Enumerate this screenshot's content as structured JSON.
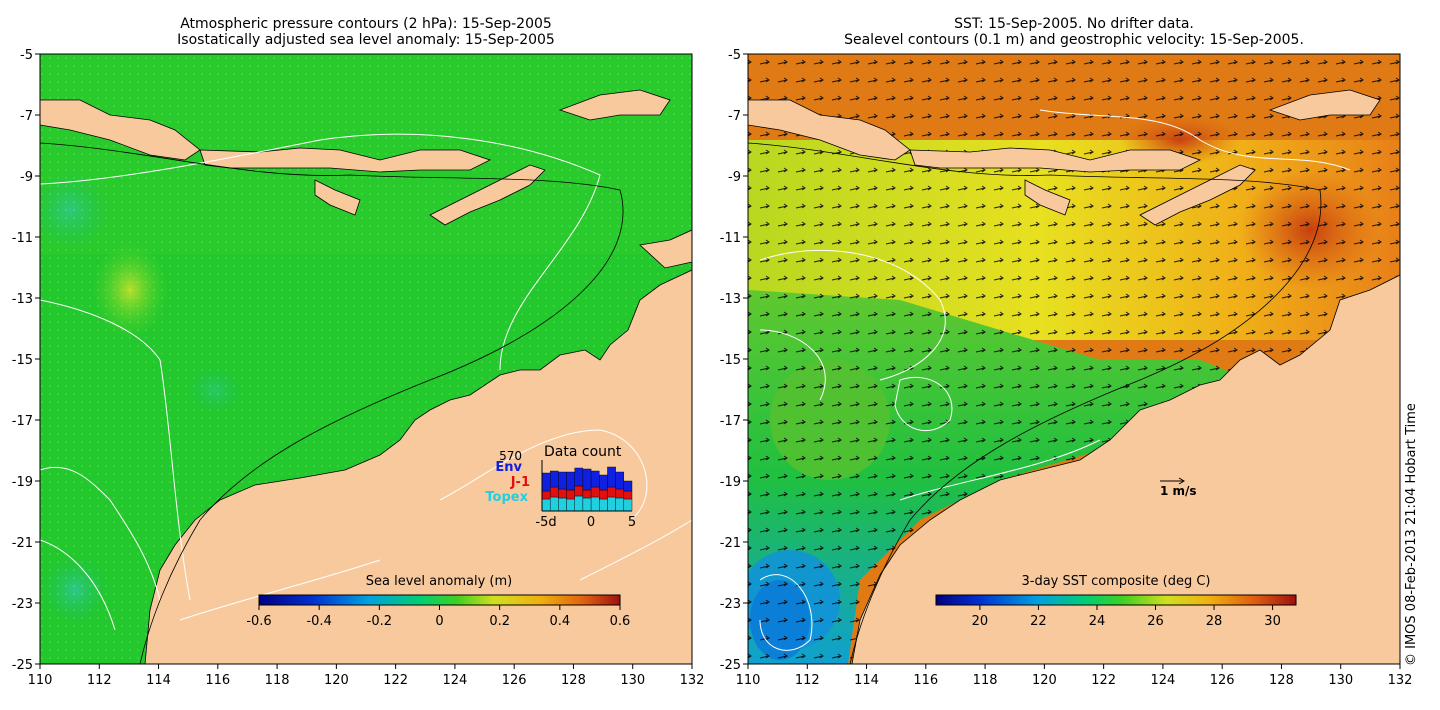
{
  "left_panel": {
    "title_line1": "Atmospheric pressure contours (2 hPa): 15-Sep-2005",
    "title_line2": "Isostatically adjusted sea level anomaly: 15-Sep-2005",
    "colorbar": {
      "label": "Sea level anomaly (m)",
      "ticks": [
        "-0.6",
        "-0.4",
        "-0.2",
        "0",
        "0.2",
        "0.4",
        "0.6"
      ],
      "range": [
        -0.6,
        0.6
      ]
    },
    "data_count": {
      "title": "Data count",
      "max_label": "570",
      "x_ticks": [
        "-5d",
        "0",
        "5"
      ],
      "legend": [
        {
          "name": "Env",
          "color": "#1020e0"
        },
        {
          "name": "J-1",
          "color": "#e01010"
        },
        {
          "name": "Topex",
          "color": "#20d0e0"
        }
      ]
    }
  },
  "right_panel": {
    "title_line1": "SST: 15-Sep-2005. No drifter data.",
    "title_line2": "Sealevel contours (0.1 m) and geostrophic velocity: 15-Sep-2005.",
    "velocity_scale_label": "1 m/s",
    "colorbar": {
      "label": "3-day SST composite (deg C)",
      "ticks": [
        "20",
        "22",
        "24",
        "26",
        "28",
        "30"
      ],
      "range": [
        18.5,
        30.8
      ]
    }
  },
  "axes": {
    "lon_ticks": [
      "110",
      "112",
      "114",
      "116",
      "118",
      "120",
      "122",
      "124",
      "126",
      "128",
      "130",
      "132"
    ],
    "lat_ticks": [
      "-5",
      "-7",
      "-9",
      "-11",
      "-13",
      "-15",
      "-17",
      "-19",
      "-21",
      "-23",
      "-25"
    ],
    "lon_range": [
      110,
      132
    ],
    "lat_range": [
      -25,
      -5
    ]
  },
  "credit": "© IMOS 08-Feb-2013 21:04 Hobart Time",
  "colors": {
    "land": "#f7c99d",
    "ocean_left": "#1ec62e",
    "ocean_right_warm": "#e07814",
    "ocean_right_mid": "#e8d81a"
  }
}
